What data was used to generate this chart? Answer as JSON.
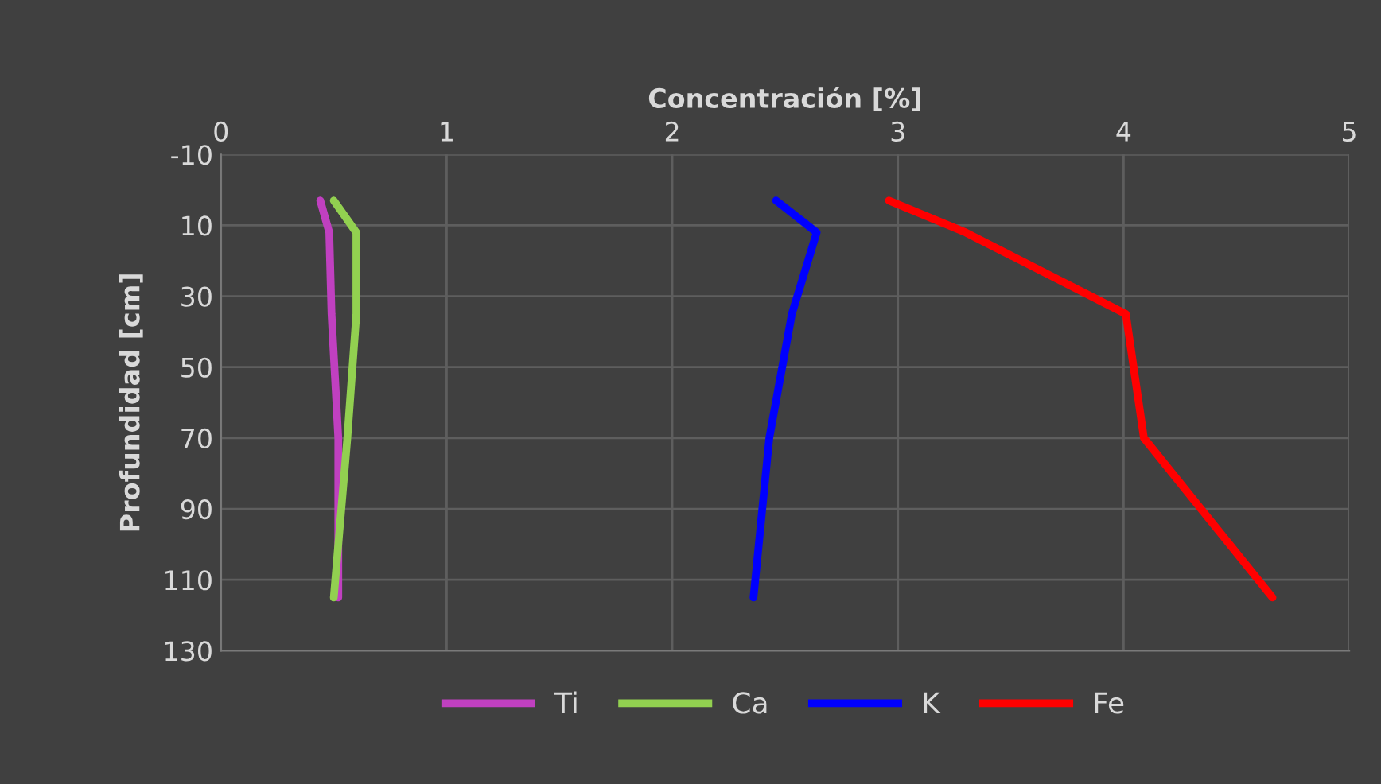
{
  "chart_data": {
    "type": "line",
    "xlabel": "Concentración [%]",
    "ylabel": "Profundidad [cm]",
    "xlim": [
      0,
      5
    ],
    "xticks": [
      0,
      1,
      2,
      3,
      4,
      5
    ],
    "ylim": [
      130,
      -10
    ],
    "yticks": [
      -10,
      10,
      30,
      50,
      70,
      90,
      110,
      130
    ],
    "grid": true,
    "legend": "bottom",
    "line_style": "solid",
    "series": [
      {
        "name": "Ti",
        "color": "#c040c0",
        "x": [
          0.44,
          0.48,
          0.49,
          0.52,
          0.52
        ],
        "values": [
          3,
          12,
          35,
          70,
          115
        ]
      },
      {
        "name": "Ca",
        "color": "#92d050",
        "x": [
          0.5,
          0.6,
          0.6,
          0.56,
          0.5
        ],
        "values": [
          3,
          12,
          35,
          70,
          115
        ]
      },
      {
        "name": "K",
        "color": "#0000ff",
        "x": [
          2.46,
          2.64,
          2.53,
          2.43,
          2.36
        ],
        "values": [
          3,
          12,
          35,
          70,
          115
        ]
      },
      {
        "name": "Fe",
        "color": "#ff0000",
        "x": [
          2.96,
          3.3,
          4.01,
          4.09,
          4.66
        ],
        "values": [
          3,
          12,
          35,
          70,
          115
        ]
      }
    ]
  }
}
